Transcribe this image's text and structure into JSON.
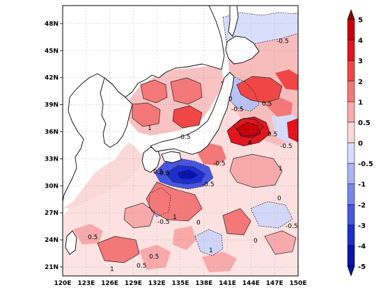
{
  "map": {
    "lon_ticks": [
      "120E",
      "123E",
      "126E",
      "129E",
      "132E",
      "135E",
      "138E",
      "141E",
      "144E",
      "147E",
      "150E"
    ],
    "lat_ticks": [
      "21N",
      "24N",
      "27N",
      "30N",
      "33N",
      "36N",
      "39N",
      "42N",
      "45N",
      "48N"
    ],
    "extent": {
      "lon_min": 120,
      "lon_max": 150,
      "lat_min": 20,
      "lat_max": 50
    }
  },
  "colorbar": {
    "levels": [
      "5",
      "4",
      "3",
      "2",
      "1",
      "0.5",
      "0",
      "-0.5",
      "-1",
      "-2",
      "-3",
      "-4",
      "-5"
    ],
    "colors": [
      "#8b0000",
      "#c8000a",
      "#e2141e",
      "#f04646",
      "#f47878",
      "#f8aaaa",
      "#fcd8d8",
      "#d8dcfc",
      "#aab4f4",
      "#7886ec",
      "#4656e0",
      "#1e2ecc",
      "#0a14a8"
    ]
  },
  "contour_labels": [
    "-0.5",
    "0",
    "0.5",
    "1",
    "4"
  ]
}
